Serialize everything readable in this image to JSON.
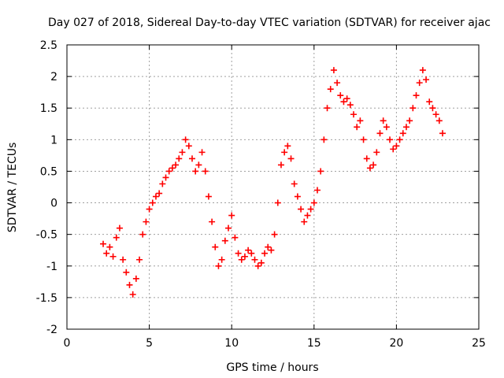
{
  "chart_data": {
    "type": "scatter",
    "title": "Day 027 of 2018, Sidereal Day-to-day VTEC variation (SDTVAR) for receiver ajac",
    "xlabel": "GPS time / hours",
    "ylabel": "SDTVAR / TECUs",
    "xlim": [
      0,
      25
    ],
    "ylim": [
      -2,
      2.5
    ],
    "xticks": [
      0,
      5,
      10,
      15,
      20,
      25
    ],
    "xtick_labels": [
      "0",
      "5",
      "10",
      "15",
      "20",
      "25"
    ],
    "yticks": [
      -2,
      -1.5,
      -1,
      -0.5,
      0,
      0.5,
      1,
      1.5,
      2,
      2.5
    ],
    "ytick_labels": [
      "-2",
      "-1.5",
      "-1",
      "-0.5",
      "0",
      "0.5",
      "1",
      "1.5",
      "2",
      "2.5"
    ],
    "grid": true,
    "marker": "+",
    "marker_color": "#ff0000",
    "series": [
      {
        "name": "SDTVAR",
        "x": [
          2.2,
          2.4,
          2.6,
          2.8,
          3.0,
          3.2,
          3.4,
          3.6,
          3.8,
          4.0,
          4.2,
          4.4,
          4.6,
          4.8,
          5.0,
          5.2,
          5.4,
          5.6,
          5.8,
          6.0,
          6.2,
          6.4,
          6.6,
          6.8,
          7.0,
          7.2,
          7.4,
          7.6,
          7.8,
          8.0,
          8.2,
          8.4,
          8.6,
          8.8,
          9.0,
          9.2,
          9.4,
          9.6,
          9.8,
          10.0,
          10.2,
          10.4,
          10.6,
          10.8,
          11.0,
          11.2,
          11.4,
          11.6,
          11.8,
          12.0,
          12.2,
          12.4,
          12.6,
          12.8,
          13.0,
          13.2,
          13.4,
          13.6,
          13.8,
          14.0,
          14.2,
          14.4,
          14.6,
          14.8,
          15.0,
          15.2,
          15.4,
          15.6,
          15.8,
          16.0,
          16.2,
          16.4,
          16.6,
          16.8,
          17.0,
          17.2,
          17.4,
          17.6,
          17.8,
          18.0,
          18.2,
          18.4,
          18.6,
          18.8,
          19.0,
          19.2,
          19.4,
          19.6,
          19.8,
          20.0,
          20.2,
          20.4,
          20.6,
          20.8,
          21.0,
          21.2,
          21.4,
          21.6,
          21.8,
          22.0,
          22.2,
          22.4,
          22.6,
          22.8
        ],
        "y": [
          -0.65,
          -0.8,
          -0.7,
          -0.85,
          -0.55,
          -0.4,
          -0.9,
          -1.1,
          -1.3,
          -1.45,
          -1.2,
          -0.9,
          -0.5,
          -0.3,
          -0.1,
          0.0,
          0.1,
          0.15,
          0.3,
          0.4,
          0.5,
          0.55,
          0.6,
          0.7,
          0.8,
          1.0,
          0.9,
          0.7,
          0.5,
          0.6,
          0.8,
          0.5,
          0.1,
          -0.3,
          -0.7,
          -1.0,
          -0.9,
          -0.6,
          -0.4,
          -0.2,
          -0.55,
          -0.8,
          -0.9,
          -0.85,
          -0.75,
          -0.8,
          -0.9,
          -1.0,
          -0.95,
          -0.8,
          -0.7,
          -0.75,
          -0.5,
          0.0,
          0.6,
          0.8,
          0.9,
          0.7,
          0.3,
          0.1,
          -0.1,
          -0.3,
          -0.2,
          -0.1,
          0.0,
          0.2,
          0.5,
          1.0,
          1.5,
          1.8,
          2.1,
          1.9,
          1.7,
          1.6,
          1.65,
          1.55,
          1.4,
          1.2,
          1.3,
          1.0,
          0.7,
          0.55,
          0.6,
          0.8,
          1.1,
          1.3,
          1.2,
          1.0,
          0.85,
          0.9,
          1.0,
          1.1,
          1.2,
          1.3,
          1.5,
          1.7,
          1.9,
          2.1,
          1.95,
          1.6,
          1.5,
          1.4,
          1.3,
          1.1
        ]
      }
    ],
    "tick_format_note": "tick labels as shown"
  }
}
